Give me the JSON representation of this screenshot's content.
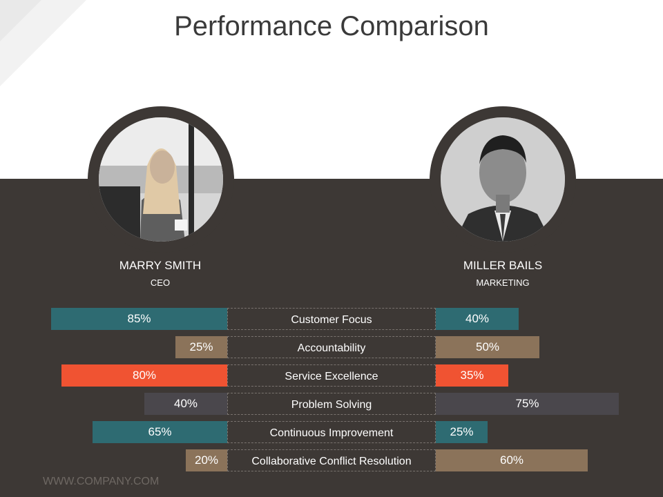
{
  "title": "Performance Comparison",
  "footer": "WWW.COMPANY.COM",
  "people": [
    {
      "name": "MARRY SMITH",
      "role": "CEO"
    },
    {
      "name": "MILLER BAILS",
      "role": "MARKETING"
    }
  ],
  "chart_data": {
    "type": "bar",
    "categories": [
      "Customer Focus",
      "Accountability",
      "Service Excellence",
      "Problem Solving",
      "Continuous Improvement",
      "Collaborative Conflict Resolution"
    ],
    "series": [
      {
        "name": "MARRY SMITH",
        "values": [
          85,
          25,
          80,
          40,
          65,
          20
        ],
        "labels": [
          "85%",
          "25%",
          "80%",
          "40%",
          "65%",
          "20%"
        ]
      },
      {
        "name": "MILLER BAILS",
        "values": [
          40,
          50,
          35,
          75,
          25,
          60
        ],
        "labels": [
          "40%",
          "50%",
          "35%",
          "75%",
          "25%",
          "60%"
        ]
      }
    ],
    "colors": [
      "#2e6b72",
      "#8b735a",
      "#f05332",
      "#4a474c",
      "#2e6b72",
      "#8b735a"
    ],
    "xlim": [
      0,
      100
    ],
    "legend": "none"
  }
}
